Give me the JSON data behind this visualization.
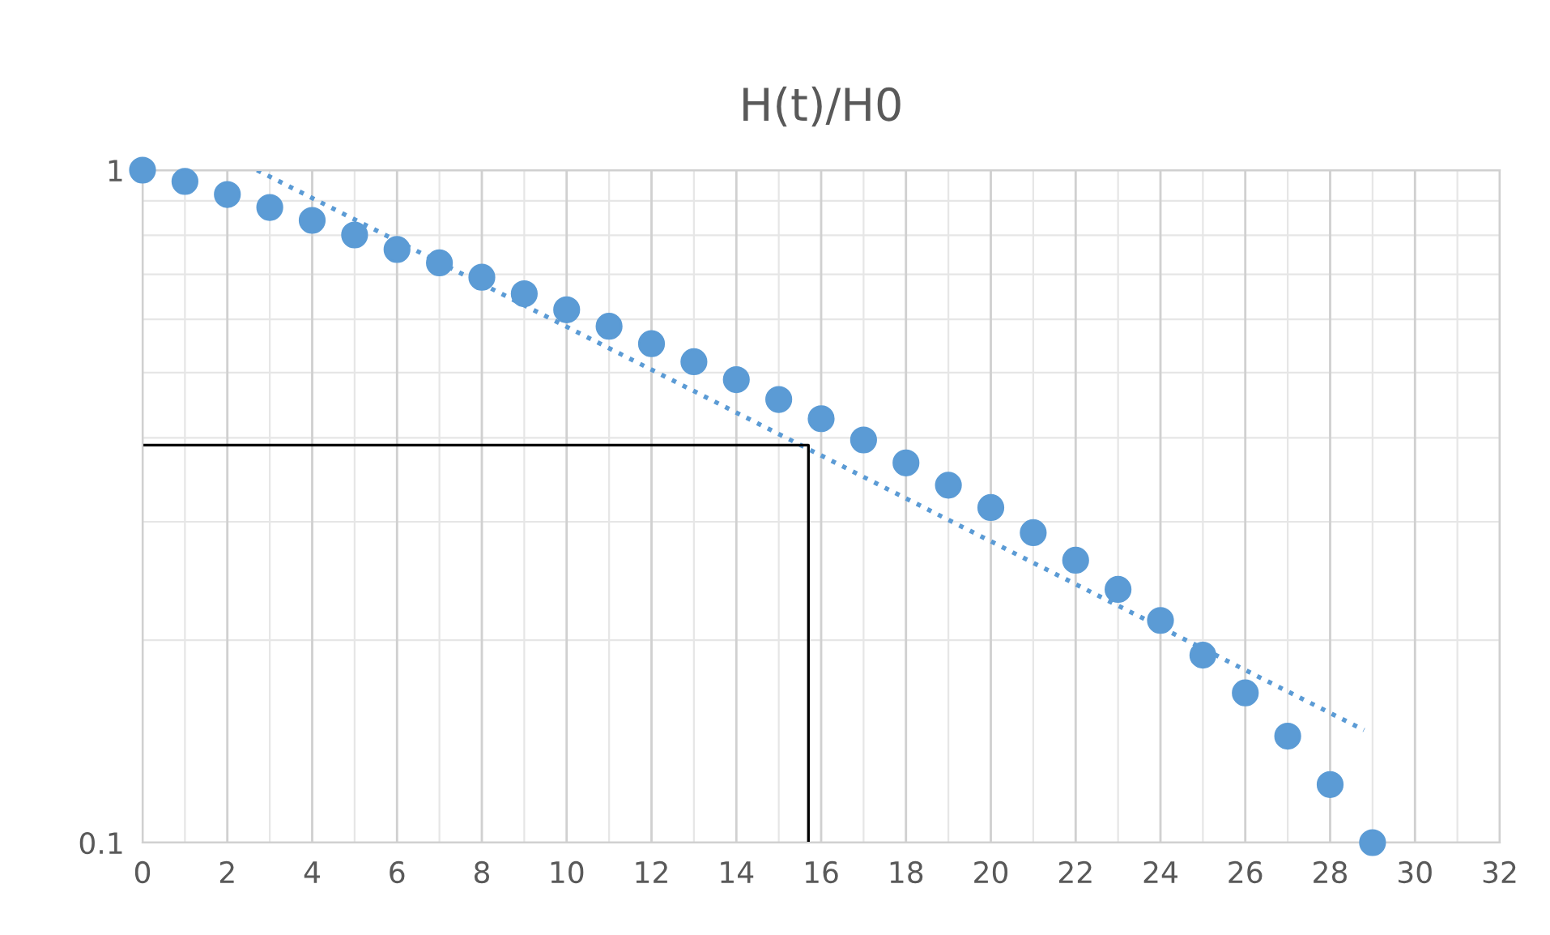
{
  "chart_data": {
    "type": "scatter",
    "title": "H(t)/H0",
    "x": [
      0,
      1,
      2,
      3,
      4,
      5,
      6,
      7,
      8,
      9,
      10,
      11,
      12,
      13,
      14,
      15,
      16,
      17,
      18,
      19,
      20,
      21,
      22,
      23,
      24,
      25,
      26,
      27,
      28,
      29
    ],
    "series": [
      {
        "color": "#5b9bd5",
        "marker": "circle",
        "values": [
          1,
          0.962,
          0.92,
          0.88,
          0.842,
          0.801,
          0.762,
          0.728,
          0.693,
          0.655,
          0.62,
          0.586,
          0.552,
          0.519,
          0.488,
          0.456,
          0.427,
          0.397,
          0.367,
          0.34,
          0.315,
          0.289,
          0.263,
          0.238,
          0.214,
          0.19,
          0.167,
          0.144,
          0.122,
          0.1
        ]
      },
      {
        "type": "line",
        "color": "#5b9bd5",
        "line_style": "dotted",
        "marker": "none",
        "x": [
          2.7,
          28.8
        ],
        "values": [
          1,
          0.147
        ]
      },
      {
        "type": "line",
        "color": "#000000",
        "line_style": "solid",
        "marker": "none",
        "x": [
          0,
          15.7,
          15.7
        ],
        "values": [
          0.39,
          0.39,
          0.1
        ]
      }
    ],
    "log": "y",
    "xlim": [
      0,
      32
    ],
    "xticks": [
      0,
      2,
      4,
      6,
      8,
      10,
      12,
      14,
      16,
      18,
      20,
      22,
      24,
      26,
      28,
      30,
      32
    ],
    "ylim": [
      0.1,
      1
    ],
    "yticks": [
      0.1,
      1
    ],
    "grid": true
  }
}
